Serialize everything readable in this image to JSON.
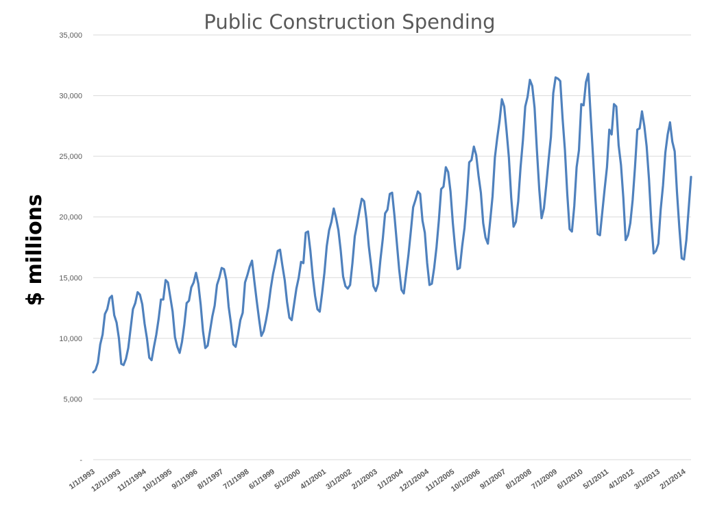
{
  "chart_data": {
    "type": "line",
    "title": "Public Construction Spending",
    "xlabel": "",
    "ylabel": "$ millions",
    "ylim": [
      0,
      35000
    ],
    "yticks": [
      {
        "value": 0,
        "label": "-"
      },
      {
        "value": 5000,
        "label": "5,000"
      },
      {
        "value": 10000,
        "label": "10,000"
      },
      {
        "value": 15000,
        "label": "15,000"
      },
      {
        "value": 20000,
        "label": "20,000"
      },
      {
        "value": 25000,
        "label": "25,000"
      },
      {
        "value": 30000,
        "label": "30,000"
      },
      {
        "value": 35000,
        "label": "35,000"
      }
    ],
    "xticks": [
      "1/1/1993",
      "12/1/1993",
      "11/1/1994",
      "10/1/1995",
      "9/1/1996",
      "8/1/1997",
      "7/1/1998",
      "6/1/1999",
      "5/1/2000",
      "4/1/2001",
      "3/1/2002",
      "2/1/2003",
      "1/1/2004",
      "12/1/2004",
      "11/1/2005",
      "10/1/2006",
      "9/1/2007",
      "8/1/2008",
      "7/1/2009",
      "6/1/2010",
      "5/1/2011",
      "4/1/2012",
      "3/1/2013",
      "2/1/2014"
    ],
    "x_range": [
      "1/1/1993",
      "11/1/2014"
    ],
    "frequency": "monthly",
    "grid": true,
    "legend": "none",
    "line_color": "#4f81bd",
    "series": [
      {
        "values": [
          7200,
          7400,
          8000,
          9500,
          10300,
          12000,
          12400,
          13300,
          13500,
          11900,
          11300,
          10000,
          7900,
          7800,
          8300,
          9200,
          10800,
          12400,
          12900,
          13800,
          13600,
          12800,
          11200,
          10000,
          8400,
          8200,
          9300,
          10300,
          11600,
          13200,
          13200,
          14800,
          14600,
          13400,
          12200,
          10100,
          9300,
          8800,
          9700,
          11100,
          12900,
          13100,
          14200,
          14600,
          15400,
          14500,
          12800,
          10600,
          9200,
          9400,
          10600,
          11800,
          12700,
          14400,
          15000,
          15800,
          15700,
          14800,
          12600,
          11200,
          9500,
          9300,
          10300,
          11500,
          12100,
          14600,
          15200,
          15900,
          16400,
          14700,
          13100,
          11600,
          10200,
          10600,
          11500,
          12600,
          14100,
          15300,
          16200,
          17200,
          17300,
          16000,
          14800,
          13000,
          11700,
          11500,
          12800,
          14100,
          15000,
          16300,
          16200,
          18700,
          18800,
          17200,
          15100,
          13500,
          12400,
          12200,
          13700,
          15400,
          17600,
          18900,
          19600,
          20700,
          19900,
          18900,
          17200,
          15100,
          14300,
          14100,
          14400,
          16200,
          18400,
          19400,
          20500,
          21500,
          21300,
          19800,
          17600,
          16000,
          14300,
          13900,
          14500,
          16500,
          18200,
          20300,
          20600,
          21900,
          22000,
          20100,
          17900,
          15700,
          14000,
          13700,
          15300,
          16900,
          18800,
          20800,
          21400,
          22100,
          21900,
          19700,
          18700,
          16200,
          14400,
          14500,
          15800,
          17500,
          19700,
          22300,
          22500,
          24100,
          23700,
          22100,
          19500,
          17400,
          15700,
          15800,
          17600,
          19100,
          21500,
          24500,
          24700,
          25800,
          25100,
          23400,
          22000,
          19500,
          18300,
          17800,
          19700,
          21700,
          24900,
          26500,
          27900,
          29700,
          29100,
          27100,
          24900,
          21600,
          19200,
          19600,
          21300,
          24100,
          26300,
          29100,
          29900,
          31300,
          30800,
          29000,
          25500,
          22300,
          19900,
          20700,
          22600,
          24700,
          26600,
          30200,
          31500,
          31400,
          31200,
          28100,
          25500,
          21900,
          19000,
          18800,
          20900,
          24100,
          25500,
          29300,
          29200,
          31100,
          31800,
          28400,
          25100,
          21700,
          18600,
          18500,
          20400,
          22300,
          24100,
          27200,
          26800,
          29300,
          29100,
          25900,
          24300,
          21600,
          18100,
          18500,
          19500,
          21400,
          24100,
          27200,
          27300,
          28700,
          27500,
          25800,
          23100,
          19600,
          17000,
          17200,
          17800,
          20600,
          22600,
          25300,
          26800,
          27800,
          26200,
          25400,
          22000,
          19100,
          16600,
          16500,
          18100,
          20700,
          23300
        ]
      }
    ]
  }
}
